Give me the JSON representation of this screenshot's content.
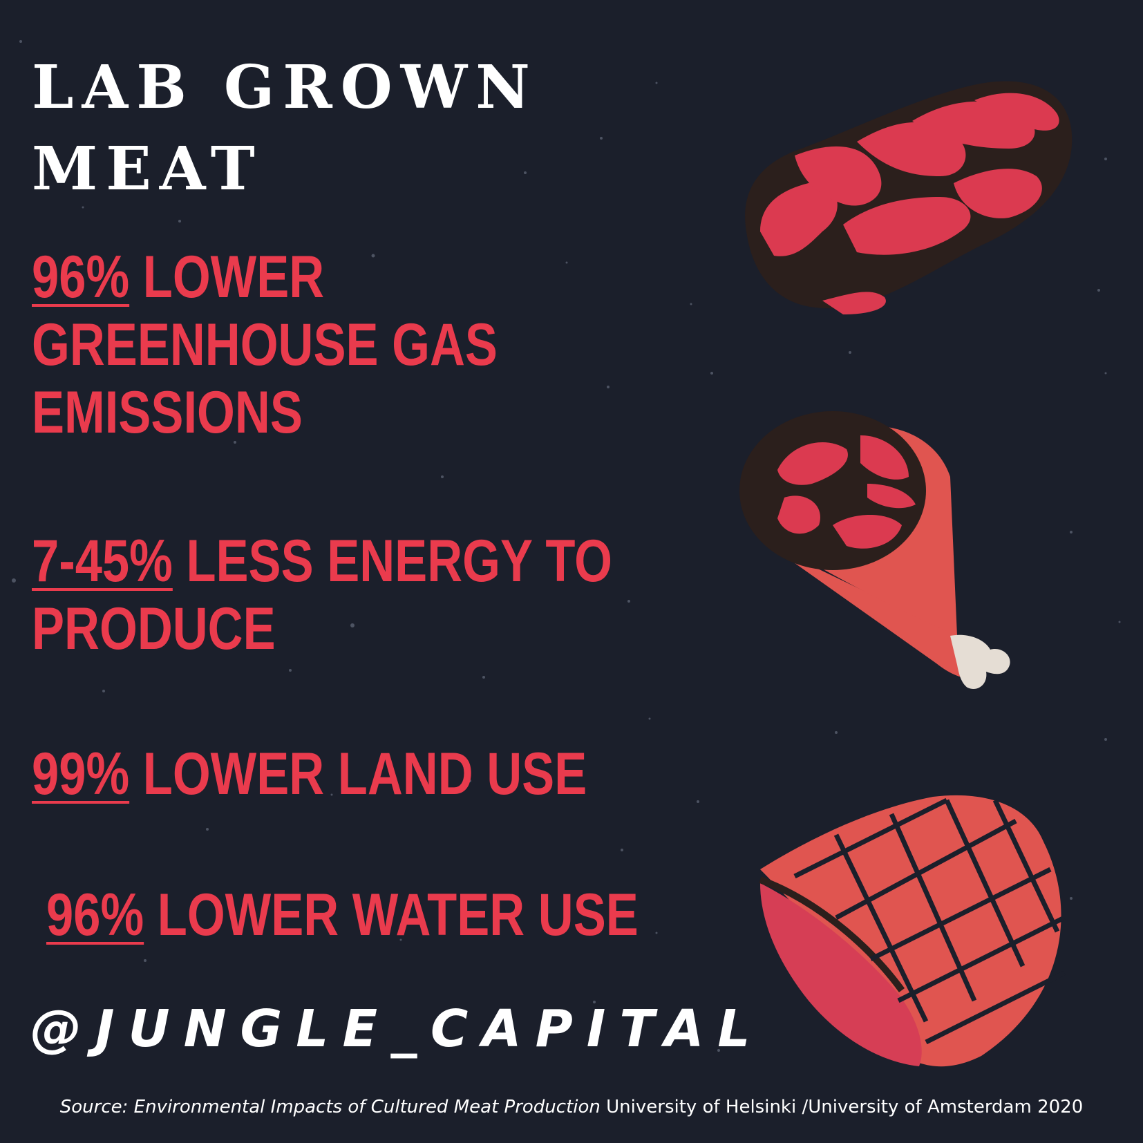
{
  "title": {
    "line1": "LAB GROWN",
    "line2": "MEAT"
  },
  "stats": [
    {
      "pct": "96%",
      "line1_rest": " LOWER",
      "line2": "GREENHOUSE GAS",
      "line3": "EMISSIONS"
    },
    {
      "pct": "7-45%",
      "line1_rest": " LESS ENERGY TO",
      "line2": "PRODUCE"
    },
    {
      "pct": "99%",
      "line1_rest": " LOWER LAND USE"
    },
    {
      "pct": "96%",
      "line1_rest": " LOWER WATER USE"
    }
  ],
  "handle": "@JUNGLE_CAPITAL",
  "source": {
    "prefix": "Source: ",
    "title": "Environmental Impacts of Cultured Meat Production",
    "rest": " University of Helsinki /University of Amsterdam 2020"
  },
  "illustrations": [
    "steak-icon",
    "ham-leg-icon",
    "grilled-steak-icon"
  ],
  "colors": {
    "background": "#1b1f2b",
    "accent": "#ea3b4d",
    "title": "#ffffff",
    "meat_dark": "#2b1f1c",
    "meat_light": "#e05550"
  }
}
